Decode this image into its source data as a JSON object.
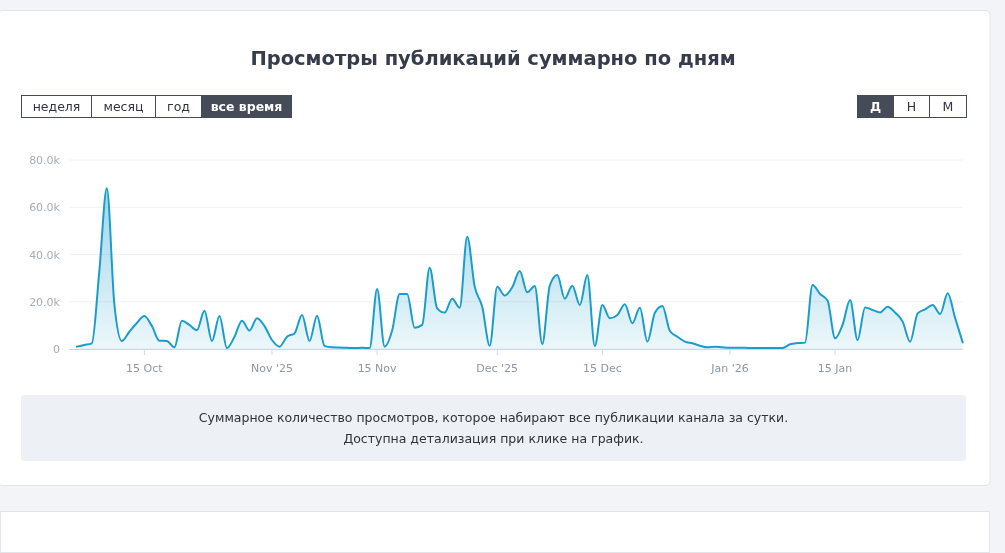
{
  "chart_data": {
    "type": "area",
    "title": "Просмотры публикаций суммарно по дням",
    "annotations": [
      "неделя",
      "месяц",
      "год",
      "все время",
      "Д",
      "Н",
      "М",
      "Суммарное количество просмотров, которое набирают все публикации канала за сутки.",
      "Доступна детализация при клике на график."
    ],
    "x": [
      "2025-10-06",
      "2025-10-07",
      "2025-10-08",
      "2025-10-09",
      "2025-10-10",
      "2025-10-11",
      "2025-10-12",
      "2025-10-13",
      "2025-10-14",
      "2025-10-15",
      "2025-10-16",
      "2025-10-17",
      "2025-10-18",
      "2025-10-19",
      "2025-10-20",
      "2025-10-21",
      "2025-10-22",
      "2025-10-23",
      "2025-10-24",
      "2025-10-25",
      "2025-10-26",
      "2025-10-27",
      "2025-10-28",
      "2025-10-29",
      "2025-10-30",
      "2025-10-31",
      "2025-11-01",
      "2025-11-02",
      "2025-11-03",
      "2025-11-04",
      "2025-11-05",
      "2025-11-06",
      "2025-11-07",
      "2025-11-08",
      "2025-11-09",
      "2025-11-10",
      "2025-11-11",
      "2025-11-12",
      "2025-11-13",
      "2025-11-14",
      "2025-11-15",
      "2025-11-16",
      "2025-11-17",
      "2025-11-18",
      "2025-11-19",
      "2025-11-20",
      "2025-11-21",
      "2025-11-22",
      "2025-11-23",
      "2025-11-24",
      "2025-11-25",
      "2025-11-26",
      "2025-11-27",
      "2025-11-28",
      "2025-11-29",
      "2025-11-30",
      "2025-12-01",
      "2025-12-02",
      "2025-12-03",
      "2025-12-04",
      "2025-12-05",
      "2025-12-06",
      "2025-12-07",
      "2025-12-08",
      "2025-12-09",
      "2025-12-10",
      "2025-12-11",
      "2025-12-12",
      "2025-12-13",
      "2025-12-14",
      "2025-12-15",
      "2025-12-16",
      "2025-12-17",
      "2025-12-18",
      "2025-12-19",
      "2025-12-20",
      "2025-12-21",
      "2025-12-22",
      "2025-12-23",
      "2025-12-24",
      "2025-12-25",
      "2025-12-26",
      "2025-12-27",
      "2025-12-28",
      "2025-12-29",
      "2025-12-30",
      "2025-12-31",
      "2026-01-01",
      "2026-01-02",
      "2026-01-03",
      "2026-01-04",
      "2026-01-05",
      "2026-01-06",
      "2026-01-07",
      "2026-01-08",
      "2026-01-09",
      "2026-01-10",
      "2026-01-11",
      "2026-01-12",
      "2026-01-13",
      "2026-01-14",
      "2026-01-15",
      "2026-01-16",
      "2026-01-17",
      "2026-01-18",
      "2026-01-19",
      "2026-01-20",
      "2026-01-21",
      "2026-01-22",
      "2026-01-23",
      "2026-01-24",
      "2026-01-25",
      "2026-01-26",
      "2026-01-27",
      "2026-01-28",
      "2026-01-29",
      "2026-01-30",
      "2026-01-31",
      "2026-02-01"
    ],
    "series": [
      {
        "color": "#1a9dcb",
        "values": [
          1000,
          1700,
          2400,
          33000,
          68000,
          19000,
          3400,
          7300,
          11000,
          14000,
          9700,
          3500,
          3400,
          700,
          12000,
          10200,
          8000,
          16200,
          3400,
          14000,
          400,
          5200,
          12000,
          7800,
          13000,
          9700,
          3800,
          1000,
          5200,
          6600,
          14400,
          3400,
          14100,
          1300,
          700,
          600,
          500,
          400,
          500,
          400,
          25400,
          1000,
          7800,
          23300,
          23300,
          9000,
          10200,
          34400,
          17200,
          15400,
          21300,
          17500,
          47500,
          26400,
          17900,
          1400,
          26400,
          22600,
          26100,
          33000,
          24000,
          26700,
          2100,
          26800,
          31300,
          21300,
          26800,
          18600,
          31300,
          1300,
          18600,
          13000,
          14400,
          18900,
          10900,
          17500,
          3100,
          15300,
          18200,
          7600,
          5200,
          3100,
          2400,
          1400,
          700,
          1000,
          700,
          500,
          500,
          500,
          400,
          400,
          400,
          400,
          400,
          2000,
          2500,
          2700,
          27100,
          23300,
          20500,
          4500,
          10200,
          20700,
          3800,
          17600,
          16500,
          15500,
          17900,
          15400,
          11600,
          3100,
          15100,
          16800,
          18600,
          14800,
          23600,
          13000,
          2800
        ]
      }
    ],
    "xlim": [
      "2025-10-05",
      "2026-02-01"
    ],
    "xticks": [
      {
        "value": "2025-10-15",
        "label": "15 Oct"
      },
      {
        "value": "2025-11-01",
        "label": "Nov '25"
      },
      {
        "value": "2025-11-15",
        "label": "15 Nov"
      },
      {
        "value": "2025-12-01",
        "label": "Dec '25"
      },
      {
        "value": "2025-12-15",
        "label": "15 Dec"
      },
      {
        "value": "2026-01-01",
        "label": "Jan '26"
      },
      {
        "value": "2026-01-15",
        "label": "15 Jan"
      }
    ],
    "ylim": [
      0,
      80000
    ],
    "yticks": [
      0,
      {
        "value": 20000,
        "label": "20.0k"
      },
      {
        "value": 40000,
        "label": "40.0k"
      },
      {
        "value": 60000,
        "label": "60.0k"
      },
      {
        "value": 80000,
        "label": "80.0k"
      }
    ],
    "grid": "y"
  }
}
